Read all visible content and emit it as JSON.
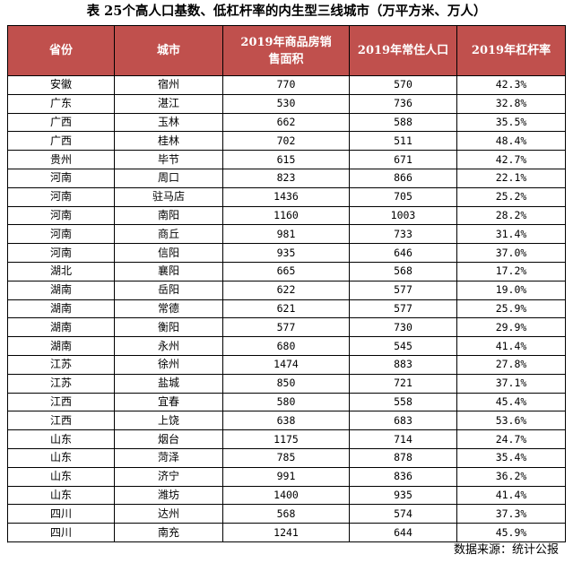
{
  "title": "表 25个高人口基数、低杠杆率的内生型三线城市（万平方米、万人）",
  "header_color": "#c0504d",
  "columns": [
    "省份",
    "城市",
    "2019年商品房销售面积",
    "2019年常住人口",
    "2019年杠杆率"
  ],
  "rows": [
    [
      "安徽",
      "宿州",
      "770",
      "570",
      "42.3%"
    ],
    [
      "广东",
      "湛江",
      "530",
      "736",
      "32.8%"
    ],
    [
      "广西",
      "玉林",
      "662",
      "588",
      "35.5%"
    ],
    [
      "广西",
      "桂林",
      "702",
      "511",
      "48.4%"
    ],
    [
      "贵州",
      "毕节",
      "615",
      "671",
      "42.7%"
    ],
    [
      "河南",
      "周口",
      "823",
      "866",
      "22.1%"
    ],
    [
      "河南",
      "驻马店",
      "1436",
      "705",
      "25.2%"
    ],
    [
      "河南",
      "南阳",
      "1160",
      "1003",
      "28.2%"
    ],
    [
      "河南",
      "商丘",
      "981",
      "733",
      "31.4%"
    ],
    [
      "河南",
      "信阳",
      "935",
      "646",
      "37.0%"
    ],
    [
      "湖北",
      "襄阳",
      "665",
      "568",
      "17.2%"
    ],
    [
      "湖南",
      "岳阳",
      "622",
      "577",
      "19.0%"
    ],
    [
      "湖南",
      "常德",
      "621",
      "577",
      "25.9%"
    ],
    [
      "湖南",
      "衡阳",
      "577",
      "730",
      "29.9%"
    ],
    [
      "湖南",
      "永州",
      "680",
      "545",
      "41.4%"
    ],
    [
      "江苏",
      "徐州",
      "1474",
      "883",
      "27.8%"
    ],
    [
      "江苏",
      "盐城",
      "850",
      "721",
      "37.1%"
    ],
    [
      "江西",
      "宜春",
      "580",
      "558",
      "45.4%"
    ],
    [
      "江西",
      "上饶",
      "638",
      "683",
      "53.6%"
    ],
    [
      "山东",
      "烟台",
      "1175",
      "714",
      "24.7%"
    ],
    [
      "山东",
      "菏泽",
      "785",
      "878",
      "35.4%"
    ],
    [
      "山东",
      "济宁",
      "991",
      "836",
      "36.2%"
    ],
    [
      "山东",
      "潍坊",
      "1400",
      "935",
      "41.4%"
    ],
    [
      "四川",
      "达州",
      "568",
      "574",
      "37.3%"
    ],
    [
      "四川",
      "南充",
      "1241",
      "644",
      "45.9%"
    ]
  ],
  "source": "数据来源：统计公报"
}
